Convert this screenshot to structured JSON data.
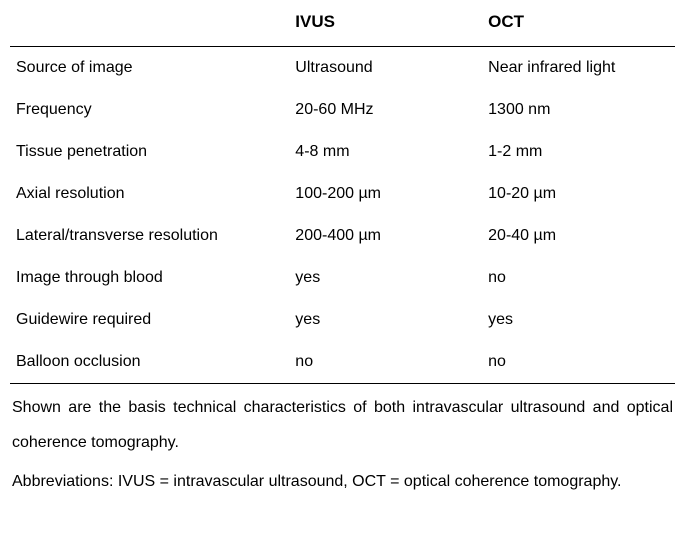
{
  "table": {
    "type": "table",
    "background_color": "#ffffff",
    "text_color": "#000000",
    "border_color": "#000000",
    "font_family": "Arial",
    "header_fontsize": 17,
    "body_fontsize": 16,
    "caption_fontsize": 16,
    "caption_line_height": 2.2,
    "column_widths_pct": [
      42,
      29,
      29
    ],
    "columns": {
      "label": "",
      "ivus": "IVUS",
      "oct": "OCT"
    },
    "rows": [
      {
        "label": "Source of image",
        "ivus": "Ultrasound",
        "oct": "Near infrared light"
      },
      {
        "label": "Frequency",
        "ivus": "20-60 MHz",
        "oct": "1300 nm"
      },
      {
        "label": "Tissue penetration",
        "ivus": "4-8 mm",
        "oct": "1-2 mm"
      },
      {
        "label": "Axial resolution",
        "ivus": "100-200 µm",
        "oct": "10-20 µm"
      },
      {
        "label": "Lateral/transverse resolution",
        "ivus": "200-400 µm",
        "oct": "20-40 µm"
      },
      {
        "label": "Image through blood",
        "ivus": "yes",
        "oct": "no"
      },
      {
        "label": "Guidewire required",
        "ivus": "yes",
        "oct": "yes"
      },
      {
        "label": "Balloon occlusion",
        "ivus": "no",
        "oct": "no"
      }
    ],
    "caption": {
      "line1": "Shown are the basis technical characteristics of both intravascular ultrasound and optical coherence tomography.",
      "line2": "Abbreviations: IVUS = intravascular ultrasound, OCT = optical coherence tomography."
    }
  }
}
